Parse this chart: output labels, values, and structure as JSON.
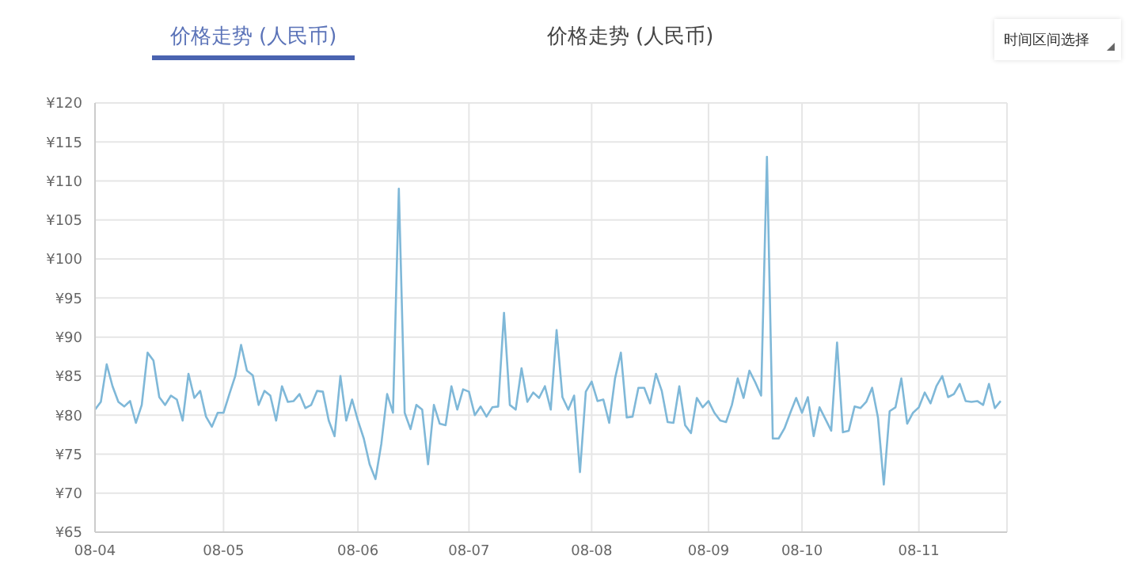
{
  "chart_data": {
    "type": "line",
    "annotations": [
      "价格走势 (人民币)",
      "价格走势 (人民币)",
      "时间区间选择"
    ],
    "categories": [
      "08-04",
      null,
      null,
      null,
      null,
      null,
      null,
      null,
      null,
      null,
      null,
      null,
      null,
      null,
      null,
      null,
      null,
      null,
      null,
      null,
      null,
      null,
      "08-05",
      null,
      null,
      null,
      null,
      null,
      null,
      null,
      null,
      null,
      null,
      null,
      null,
      null,
      null,
      null,
      null,
      null,
      null,
      null,
      null,
      null,
      null,
      "08-06",
      null,
      null,
      null,
      null,
      null,
      null,
      null,
      null,
      null,
      null,
      null,
      null,
      null,
      null,
      null,
      null,
      null,
      null,
      "08-07",
      null,
      null,
      null,
      null,
      null,
      null,
      null,
      null,
      null,
      null,
      null,
      null,
      null,
      null,
      null,
      null,
      null,
      null,
      null,
      null,
      "08-08",
      null,
      null,
      null,
      null,
      null,
      null,
      null,
      null,
      null,
      null,
      null,
      null,
      null,
      null,
      null,
      null,
      null,
      null,
      null,
      "08-09",
      null,
      null,
      null,
      null,
      null,
      null,
      null,
      null,
      null,
      null,
      null,
      null,
      null,
      null,
      null,
      "08-10",
      null,
      null,
      null,
      null,
      null,
      null,
      null,
      null,
      null,
      null,
      null,
      null,
      null,
      null,
      null,
      null,
      null,
      null,
      null,
      "08-11",
      null,
      null,
      null,
      null,
      null,
      null,
      null,
      null,
      null,
      null,
      null,
      null,
      null,
      null
    ],
    "series": [
      {
        "color": "#7fb8d8",
        "values": [
          80.7,
          81.7,
          86.5,
          83.7,
          81.7,
          81.1,
          81.8,
          79,
          81.3,
          88,
          87,
          82.3,
          81.3,
          82.5,
          82,
          79.3,
          85.3,
          82.2,
          83.1,
          79.8,
          78.5,
          80.3,
          80.3,
          82.7,
          85,
          89,
          85.7,
          85.1,
          81.3,
          83.1,
          82.5,
          79.3,
          83.7,
          81.7,
          81.8,
          82.7,
          80.9,
          81.3,
          83.1,
          83,
          79.3,
          77.3,
          85,
          79.3,
          82,
          79.3,
          77,
          73.7,
          71.8,
          76.3,
          82.7,
          80.3,
          109,
          80.3,
          78.2,
          81.3,
          80.7,
          73.7,
          81.3,
          78.9,
          78.7,
          83.7,
          80.7,
          83.3,
          83,
          80,
          81.1,
          79.8,
          81,
          81.1,
          93.1,
          81.3,
          80.7,
          86,
          81.7,
          82.9,
          82.2,
          83.7,
          80.7,
          90.9,
          82.3,
          80.7,
          82.5,
          72.7,
          83,
          84.3,
          81.8,
          82,
          79,
          84.7,
          88,
          79.7,
          79.8,
          83.5,
          83.5,
          81.5,
          85.3,
          83.1,
          79.1,
          79,
          83.7,
          78.7,
          77.7,
          82.2,
          81,
          81.8,
          80.3,
          79.3,
          79.1,
          81.3,
          84.7,
          82.2,
          85.7,
          84.2,
          82.5,
          113.1,
          77,
          77,
          78.3,
          80.3,
          82.2,
          80.3,
          82.3,
          77.3,
          81,
          79.5,
          78,
          89.3,
          77.8,
          78,
          81.1,
          80.9,
          81.7,
          83.5,
          79.7,
          71.1,
          80.5,
          81,
          84.7,
          78.9,
          80.3,
          81,
          82.9,
          81.5,
          83.7,
          85,
          82.3,
          82.7,
          84,
          81.8,
          81.7,
          81.8,
          81.3,
          84,
          80.9,
          81.8
        ]
      }
    ],
    "ylim": [
      65,
      120
    ],
    "yticks": [
      {
        "value": 65,
        "label": "¥65"
      },
      {
        "value": 70,
        "label": "¥70"
      },
      {
        "value": 75,
        "label": "¥75"
      },
      {
        "value": 80,
        "label": "¥80"
      },
      {
        "value": 85,
        "label": "¥85"
      },
      {
        "value": 90,
        "label": "¥90"
      },
      {
        "value": 95,
        "label": "¥95"
      },
      {
        "value": 100,
        "label": "¥100"
      },
      {
        "value": 105,
        "label": "¥105"
      },
      {
        "value": 110,
        "label": "¥110"
      },
      {
        "value": 115,
        "label": "¥115"
      },
      {
        "value": 120,
        "label": "¥120"
      }
    ],
    "grid": true,
    "marker": "none",
    "line_style": "solid"
  }
}
